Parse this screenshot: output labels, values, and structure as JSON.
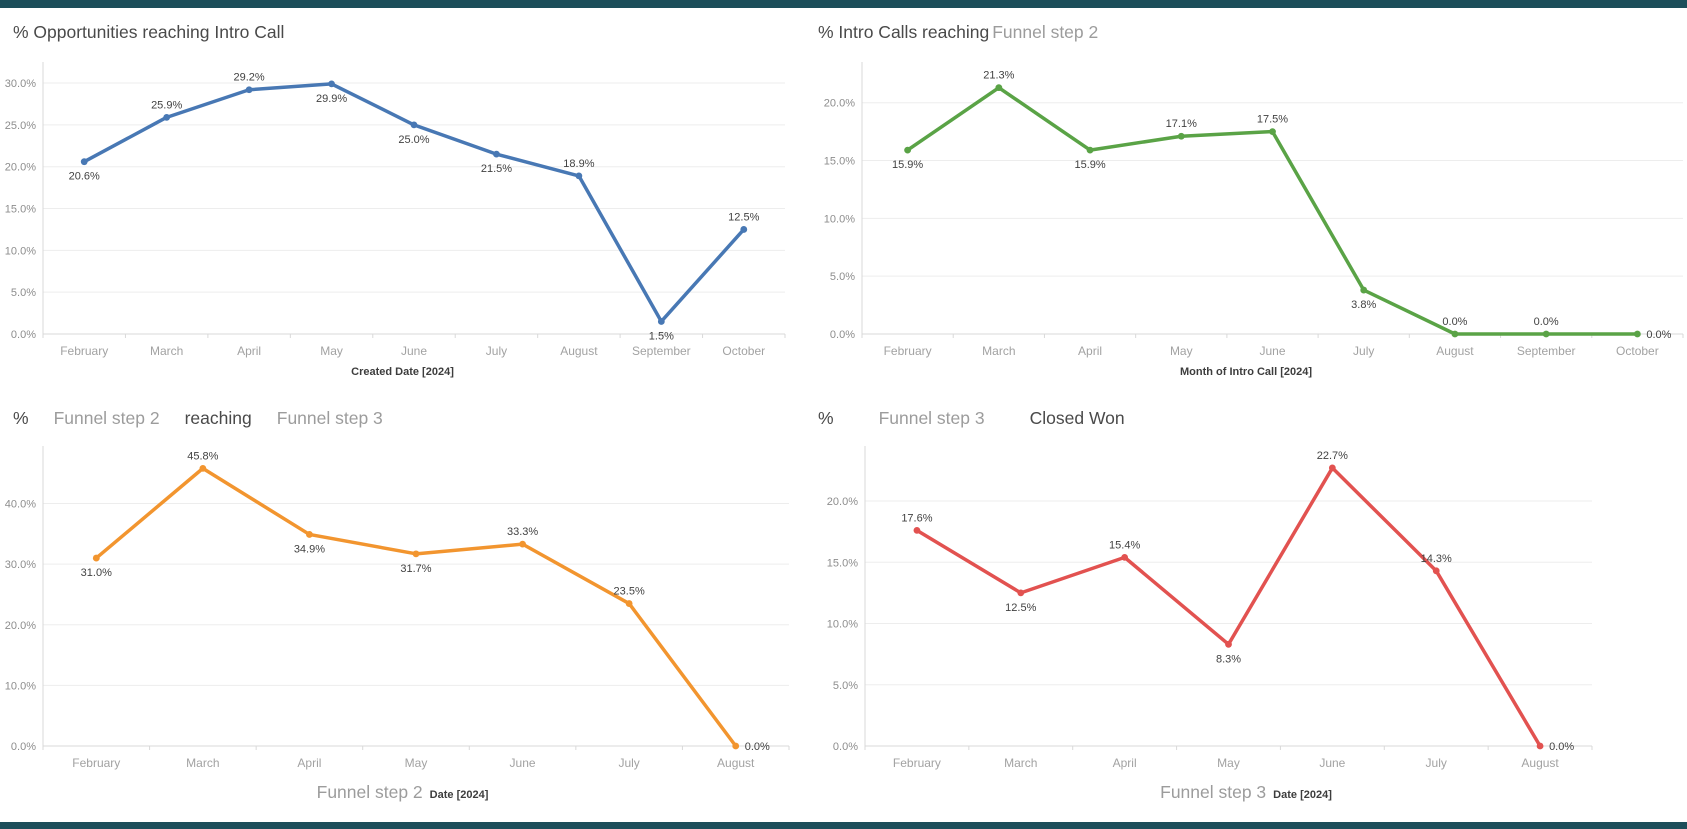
{
  "accent_color": "#1c4e5a",
  "chart_data": [
    {
      "type": "line",
      "title_segments": [
        {
          "text": "% Opportunities reaching Intro Call",
          "style": "dark"
        }
      ],
      "x_axis_title_segments": [
        {
          "text": "Created Date [2024]",
          "style": "small-bold"
        }
      ],
      "xlabel": "Created Date [2024]",
      "color": "#4878b4",
      "categories": [
        "February",
        "March",
        "April",
        "May",
        "June",
        "July",
        "August",
        "September",
        "October"
      ],
      "values": [
        20.6,
        25.9,
        29.2,
        29.9,
        25.0,
        21.5,
        18.9,
        1.5,
        12.5
      ],
      "point_labels": [
        "20.6%",
        "25.9%",
        "29.2%",
        "29.9%",
        "25.0%",
        "21.5%",
        "18.9%",
        "1.5%",
        "12.5%"
      ],
      "label_positions": [
        "below",
        "above",
        "above",
        "below",
        "below",
        "below",
        "above",
        "below",
        "above"
      ],
      "ylim": [
        0,
        31.8
      ],
      "yticks": [
        0,
        5,
        10,
        15,
        20,
        25,
        30
      ],
      "ytick_labels": [
        "0.0%",
        "5.0%",
        "10.0%",
        "15.0%",
        "20.0%",
        "25.0%",
        "30.0%"
      ],
      "zero_line": "solid",
      "grid": "horizontal",
      "legend": "none"
    },
    {
      "type": "line",
      "title_segments": [
        {
          "text": "% Intro Calls reaching",
          "style": "dark"
        },
        {
          "text": "Funnel step 2",
          "style": "light"
        }
      ],
      "x_axis_title_segments": [
        {
          "text": "Month of Intro Call [2024]",
          "style": "small-bold"
        }
      ],
      "xlabel": "Month of Intro Call [2024]",
      "color": "#5aa346",
      "categories": [
        "February",
        "March",
        "April",
        "May",
        "June",
        "July",
        "August",
        "September",
        "October"
      ],
      "values": [
        15.9,
        21.3,
        15.9,
        17.1,
        17.5,
        3.8,
        0.0,
        0.0,
        0.0
      ],
      "point_labels": [
        "15.9%",
        "21.3%",
        "15.9%",
        "17.1%",
        "17.5%",
        "3.8%",
        "0.0%",
        "0.0%",
        "0.0%"
      ],
      "label_positions": [
        "below",
        "above",
        "below",
        "above",
        "above",
        "below",
        "above",
        "above",
        "right"
      ],
      "ylim": [
        0,
        23
      ],
      "yticks": [
        0,
        5,
        10,
        15,
        20
      ],
      "ytick_labels": [
        "0.0%",
        "5.0%",
        "10.0%",
        "15.0%",
        "20.0%"
      ],
      "zero_line": "dotted",
      "grid": "horizontal",
      "legend": "none"
    },
    {
      "type": "line",
      "title_segments": [
        {
          "text": "%",
          "style": "dark"
        },
        {
          "text": "Funnel step 2",
          "style": "light"
        },
        {
          "text": "reaching",
          "style": "dark"
        },
        {
          "text": "Funnel step 3",
          "style": "light"
        }
      ],
      "x_axis_title_segments": [
        {
          "text": "Funnel step 2",
          "style": "light-large"
        },
        {
          "text": "Date [2024]",
          "style": "small-bold"
        }
      ],
      "xlabel": "Funnel step 2 Date [2024]",
      "color": "#f2952f",
      "categories": [
        "February",
        "March",
        "April",
        "May",
        "June",
        "July",
        "August"
      ],
      "values": [
        31.0,
        45.8,
        34.9,
        31.7,
        33.3,
        23.5,
        0.0
      ],
      "point_labels": [
        "31.0%",
        "45.8%",
        "34.9%",
        "31.7%",
        "33.3%",
        "23.5%",
        "0.0%"
      ],
      "label_positions": [
        "below",
        "above",
        "below",
        "below",
        "above",
        "above",
        "right"
      ],
      "ylim": [
        0,
        48.5
      ],
      "yticks": [
        0,
        10,
        20,
        30,
        40
      ],
      "ytick_labels": [
        "0.0%",
        "10.0%",
        "20.0%",
        "30.0%",
        "40.0%"
      ],
      "zero_line": "dotted",
      "grid": "horizontal",
      "legend": "none"
    },
    {
      "type": "line",
      "title_segments": [
        {
          "text": "%",
          "style": "dark"
        },
        {
          "text": "Funnel step 3",
          "style": "light"
        },
        {
          "text": "Closed Won",
          "style": "dark"
        }
      ],
      "x_axis_title_segments": [
        {
          "text": "Funnel step 3",
          "style": "light-large"
        },
        {
          "text": "Date [2024]",
          "style": "small-bold"
        }
      ],
      "xlabel": "Funnel step 3 Date [2024]",
      "color": "#e25250",
      "categories": [
        "February",
        "March",
        "April",
        "May",
        "June",
        "July",
        "August"
      ],
      "values": [
        17.6,
        12.5,
        15.4,
        8.3,
        22.7,
        14.3,
        0.0
      ],
      "point_labels": [
        "17.6%",
        "12.5%",
        "15.4%",
        "8.3%",
        "22.7%",
        "14.3%",
        "0.0%"
      ],
      "label_positions": [
        "above",
        "below",
        "above",
        "below",
        "above",
        "above",
        "right"
      ],
      "ylim": [
        0,
        24
      ],
      "yticks": [
        0,
        5,
        10,
        15,
        20
      ],
      "ytick_labels": [
        "0.0%",
        "5.0%",
        "10.0%",
        "15.0%",
        "20.0%"
      ],
      "zero_line": "dotted",
      "grid": "horizontal",
      "legend": "none"
    }
  ]
}
